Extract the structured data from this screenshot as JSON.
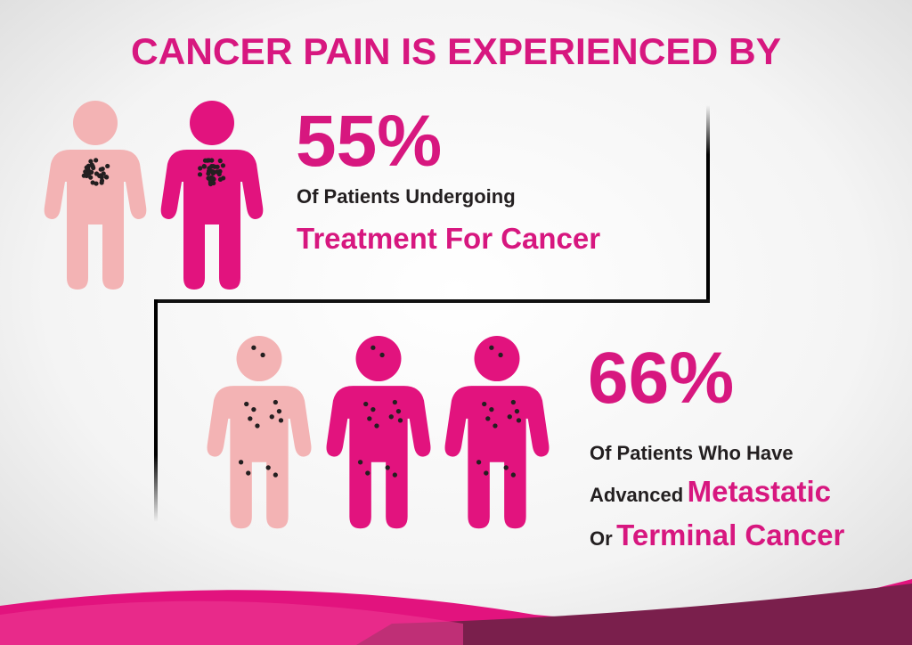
{
  "title": "CANCER PAIN IS EXPERIENCED BY",
  "stats": [
    {
      "value": "55%",
      "line1": "Of Patients Undergoing",
      "line2": "Treatment For Cancer"
    },
    {
      "value": "66%",
      "line1": "Of Patients Who Have",
      "line2_lead": "Advanced",
      "line2_em": "Metastatic",
      "line3_lead": "Or",
      "line3_em": "Terminal Cancer"
    }
  ]
}
